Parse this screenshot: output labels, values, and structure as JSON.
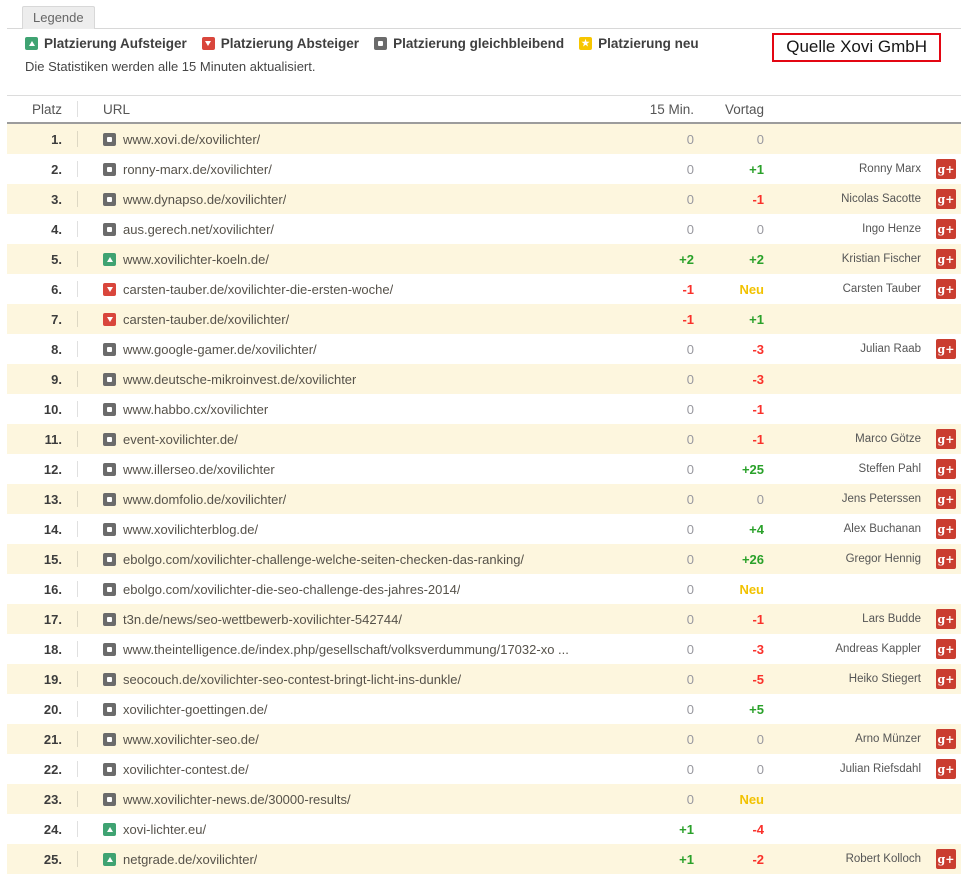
{
  "legend": {
    "tab_label": "Legende",
    "items": [
      {
        "label": "Platzierung Aufsteiger",
        "icon": "up-trend-icon"
      },
      {
        "label": "Platzierung Absteiger",
        "icon": "down-trend-icon"
      },
      {
        "label": "Platzierung gleichbleibend",
        "icon": "same-trend-icon"
      },
      {
        "label": "Platzierung neu",
        "icon": "new-trend-icon"
      }
    ],
    "note": "Die Statistiken werden alle 15 Minuten aktualisiert.",
    "source": "Quelle Xovi GmbH"
  },
  "gplus_label": "g+",
  "table": {
    "headers": {
      "rank": "Platz",
      "url": "URL",
      "min15": "15 Min.",
      "prev": "Vortag"
    },
    "rows": [
      {
        "rank": "1.",
        "trend": "same",
        "url": "www.xovi.de/xovilichter/",
        "min15": "0",
        "prev": "0",
        "name": "",
        "gplus": false
      },
      {
        "rank": "2.",
        "trend": "same",
        "url": "ronny-marx.de/xovilichter/",
        "min15": "0",
        "prev": "+1",
        "name": "Ronny Marx",
        "gplus": true
      },
      {
        "rank": "3.",
        "trend": "same",
        "url": "www.dynapso.de/xovilichter/",
        "min15": "0",
        "prev": "-1",
        "name": "Nicolas Sacotte",
        "gplus": true
      },
      {
        "rank": "4.",
        "trend": "same",
        "url": "aus.gerech.net/xovilichter/",
        "min15": "0",
        "prev": "0",
        "name": "Ingo Henze",
        "gplus": true
      },
      {
        "rank": "5.",
        "trend": "up",
        "url": "www.xovilichter-koeln.de/",
        "min15": "+2",
        "prev": "+2",
        "name": "Kristian Fischer",
        "gplus": true
      },
      {
        "rank": "6.",
        "trend": "down",
        "url": "carsten-tauber.de/xovilichter-die-ersten-woche/",
        "min15": "-1",
        "prev": "Neu",
        "name": "Carsten Tauber",
        "gplus": true
      },
      {
        "rank": "7.",
        "trend": "down",
        "url": "carsten-tauber.de/xovilichter/",
        "min15": "-1",
        "prev": "+1",
        "name": "",
        "gplus": false
      },
      {
        "rank": "8.",
        "trend": "same",
        "url": "www.google-gamer.de/xovilichter/",
        "min15": "0",
        "prev": "-3",
        "name": "Julian Raab",
        "gplus": true
      },
      {
        "rank": "9.",
        "trend": "same",
        "url": "www.deutsche-mikroinvest.de/xovilichter",
        "min15": "0",
        "prev": "-3",
        "name": "",
        "gplus": false
      },
      {
        "rank": "10.",
        "trend": "same",
        "url": "www.habbo.cx/xovilichter",
        "min15": "0",
        "prev": "-1",
        "name": "",
        "gplus": false
      },
      {
        "rank": "11.",
        "trend": "same",
        "url": "event-xovilichter.de/",
        "min15": "0",
        "prev": "-1",
        "name": "Marco Götze",
        "gplus": true
      },
      {
        "rank": "12.",
        "trend": "same",
        "url": "www.illerseo.de/xovilichter",
        "min15": "0",
        "prev": "+25",
        "name": "Steffen Pahl",
        "gplus": true
      },
      {
        "rank": "13.",
        "trend": "same",
        "url": "www.domfolio.de/xovilichter/",
        "min15": "0",
        "prev": "0",
        "name": "Jens Peterssen",
        "gplus": true
      },
      {
        "rank": "14.",
        "trend": "same",
        "url": "www.xovilichterblog.de/",
        "min15": "0",
        "prev": "+4",
        "name": "Alex Buchanan",
        "gplus": true
      },
      {
        "rank": "15.",
        "trend": "same",
        "url": "ebolgo.com/xovilichter-challenge-welche-seiten-checken-das-ranking/",
        "min15": "0",
        "prev": "+26",
        "name": "Gregor Hennig",
        "gplus": true
      },
      {
        "rank": "16.",
        "trend": "same",
        "url": "ebolgo.com/xovilichter-die-seo-challenge-des-jahres-2014/",
        "min15": "0",
        "prev": "Neu",
        "name": "",
        "gplus": false
      },
      {
        "rank": "17.",
        "trend": "same",
        "url": "t3n.de/news/seo-wettbewerb-xovilichter-542744/",
        "min15": "0",
        "prev": "-1",
        "name": "Lars Budde",
        "gplus": true
      },
      {
        "rank": "18.",
        "trend": "same",
        "url": "www.theintelligence.de/index.php/gesellschaft/volksverdummung/17032-xo ...",
        "min15": "0",
        "prev": "-3",
        "name": "Andreas Kappler",
        "gplus": true
      },
      {
        "rank": "19.",
        "trend": "same",
        "url": "seocouch.de/xovilichter-seo-contest-bringt-licht-ins-dunkle/",
        "min15": "0",
        "prev": "-5",
        "name": "Heiko Stiegert",
        "gplus": true
      },
      {
        "rank": "20.",
        "trend": "same",
        "url": "xovilichter-goettingen.de/",
        "min15": "0",
        "prev": "+5",
        "name": "",
        "gplus": false
      },
      {
        "rank": "21.",
        "trend": "same",
        "url": "www.xovilichter-seo.de/",
        "min15": "0",
        "prev": "0",
        "name": "Arno Münzer",
        "gplus": true
      },
      {
        "rank": "22.",
        "trend": "same",
        "url": "xovilichter-contest.de/",
        "min15": "0",
        "prev": "0",
        "name": "Julian Riefsdahl",
        "gplus": true
      },
      {
        "rank": "23.",
        "trend": "same",
        "url": "www.xovilichter-news.de/30000-results/",
        "min15": "0",
        "prev": "Neu",
        "name": "",
        "gplus": false
      },
      {
        "rank": "24.",
        "trend": "up",
        "url": "xovi-lichter.eu/",
        "min15": "+1",
        "prev": "-4",
        "name": "",
        "gplus": false
      },
      {
        "rank": "25.",
        "trend": "up",
        "url": "netgrade.de/xovilichter/",
        "min15": "+1",
        "prev": "-2",
        "name": "Robert Kolloch",
        "gplus": true
      }
    ]
  },
  "colors": {
    "up_icon": "#3fa372",
    "down_icon": "#d9463c",
    "same_icon": "#6b6b6b",
    "new_icon": "#f7c600",
    "positive": "#2aa12a",
    "negative": "#fa312b",
    "neu": "#f2c200",
    "zero": "#98989f",
    "row_highlight": "#fdf6de",
    "source_border": "#e30613",
    "gplus_badge": "#ca3d30"
  }
}
